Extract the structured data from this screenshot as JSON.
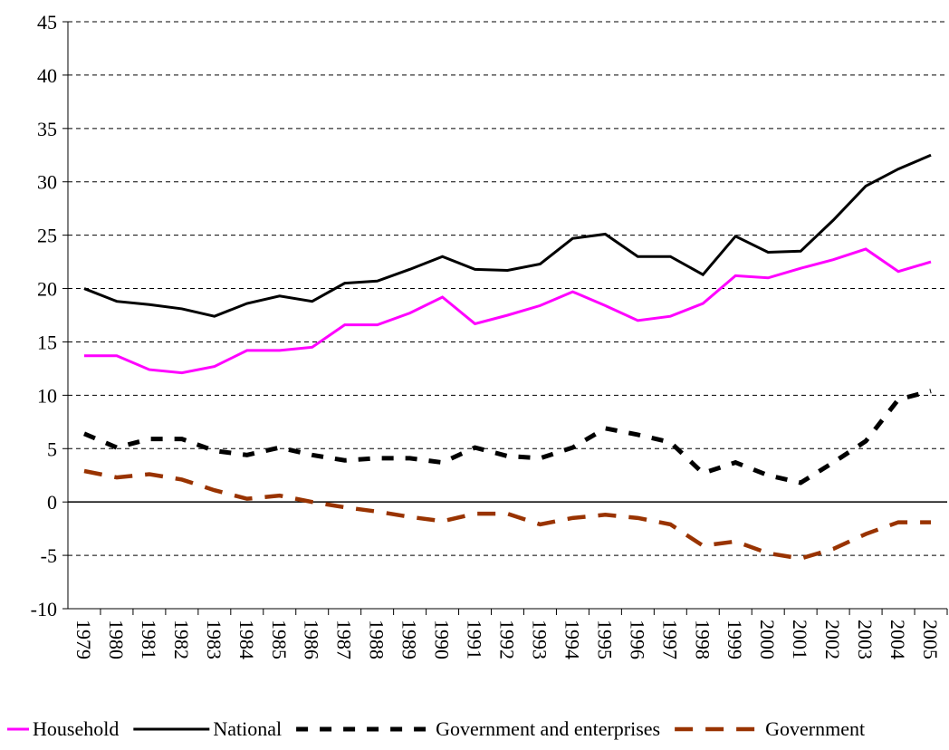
{
  "chart_data": {
    "type": "line",
    "categories": [
      "1979",
      "1980",
      "1981",
      "1982",
      "1983",
      "1984",
      "1985",
      "1986",
      "1987",
      "1988",
      "1989",
      "1990",
      "1991",
      "1992",
      "1993",
      "1994",
      "1995",
      "1996",
      "1997",
      "1998",
      "1999",
      "2000",
      "2001",
      "2002",
      "2003",
      "2004",
      "2005"
    ],
    "series": [
      {
        "name": "Household",
        "color": "#ff00ff",
        "linestyle": "solid",
        "values": [
          13.7,
          13.7,
          12.4,
          12.1,
          12.7,
          14.2,
          14.2,
          14.5,
          16.6,
          16.6,
          17.7,
          19.2,
          16.7,
          17.5,
          18.4,
          19.7,
          18.4,
          17,
          17.4,
          18.6,
          21.2,
          21,
          21.9,
          22.7,
          23.7,
          21.6,
          22.5
        ]
      },
      {
        "name": "National",
        "color": "#000000",
        "linestyle": "solid",
        "values": [
          20,
          18.8,
          18.5,
          18.1,
          17.4,
          18.6,
          19.3,
          18.8,
          20.5,
          20.7,
          21.8,
          23,
          21.8,
          21.7,
          22.3,
          24.7,
          25.1,
          23,
          23,
          21.3,
          24.9,
          23.4,
          23.5,
          26.4,
          29.6,
          31.2,
          32.5
        ]
      },
      {
        "name": "Government and enterprises",
        "color": "#000000",
        "linestyle": "dashed",
        "values": [
          6.4,
          5.1,
          5.9,
          5.9,
          4.8,
          4.4,
          5.1,
          4.4,
          3.9,
          4.1,
          4.1,
          3.7,
          5.1,
          4.3,
          4.1,
          5.1,
          6.9,
          6.3,
          5.6,
          2.7,
          3.7,
          2.5,
          1.8,
          3.7,
          5.7,
          9.6,
          10.4
        ]
      },
      {
        "name": "Government",
        "color": "#993300",
        "linestyle": "dashed",
        "values": [
          2.9,
          2.3,
          2.6,
          2.1,
          1.1,
          0.3,
          0.6,
          0,
          -0.5,
          -0.9,
          -1.4,
          -1.8,
          -1.1,
          -1.1,
          -2.1,
          -1.5,
          -1.2,
          -1.5,
          -2.1,
          -4.1,
          -3.7,
          -4.8,
          -5.3,
          -4.4,
          -3,
          -1.9,
          -1.9
        ]
      }
    ],
    "ylim": [
      -10,
      45
    ],
    "yticks": [
      -10,
      -5,
      0,
      5,
      10,
      15,
      20,
      25,
      30,
      35,
      40,
      45
    ],
    "grid": true
  }
}
